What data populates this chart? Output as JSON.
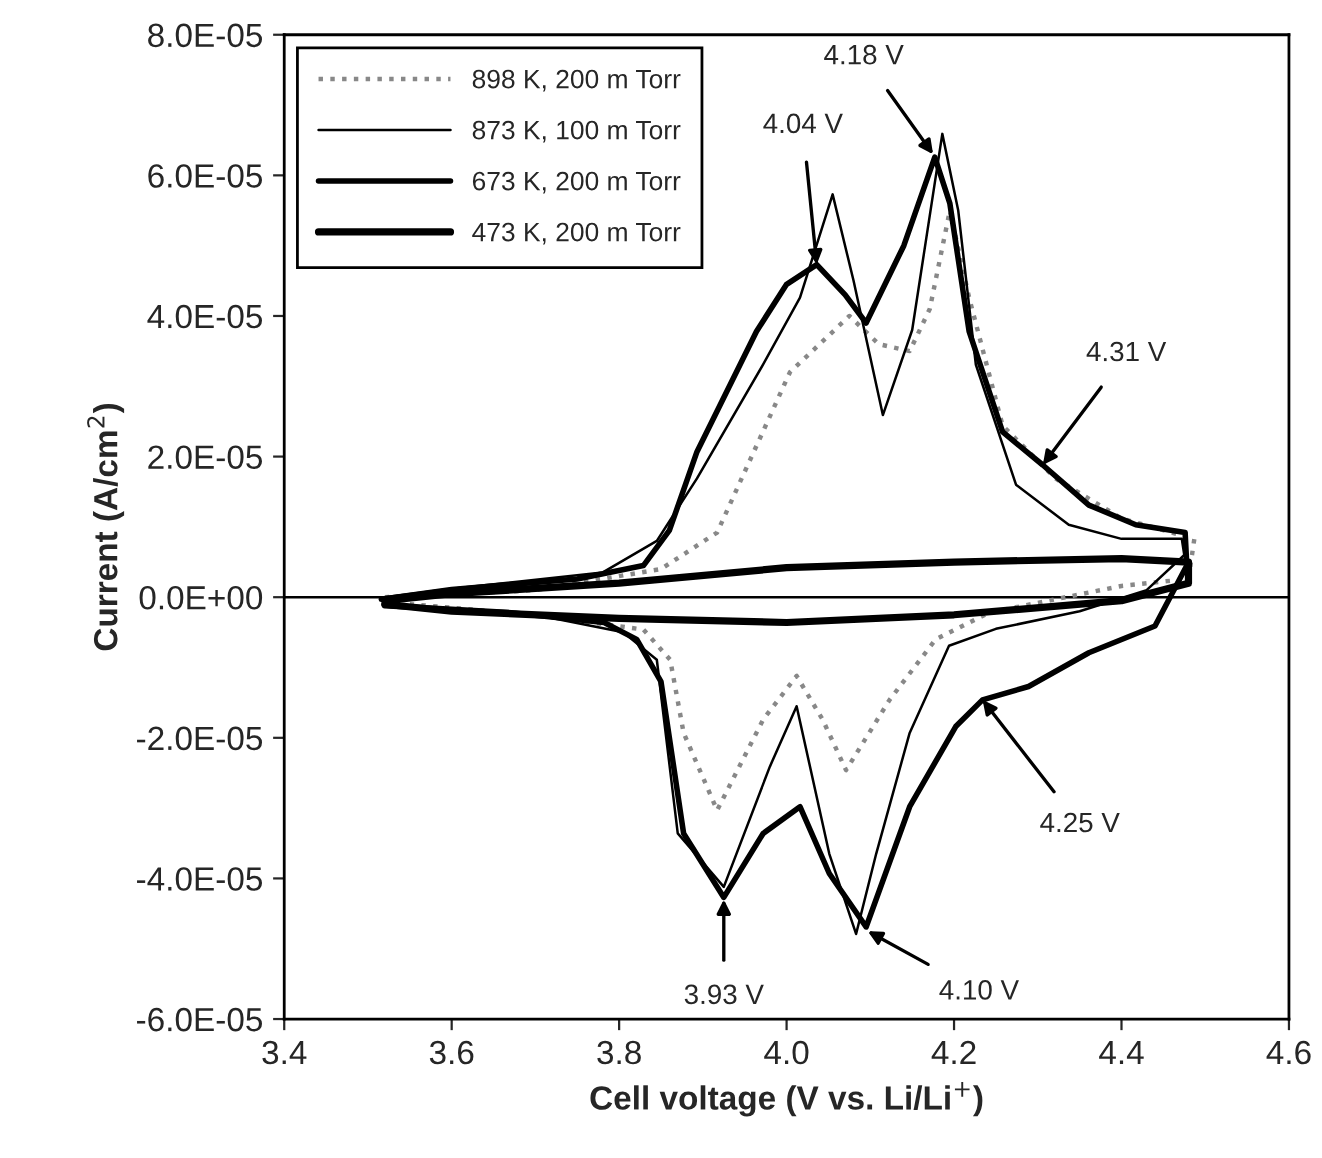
{
  "chart_data": {
    "type": "line",
    "xlabel": "Cell voltage (V vs. Li/Li$^{+}$)",
    "ylabel": "Current (A/cm$^{2}$)",
    "xlim": [
      3.4,
      4.6
    ],
    "xticks": [
      {
        "value": 3.4,
        "label": "3.4"
      },
      {
        "value": 3.6,
        "label": "3.6"
      },
      {
        "value": 3.8,
        "label": "3.8"
      },
      {
        "value": 4.0,
        "label": "4.0"
      },
      {
        "value": 4.2,
        "label": "4.2"
      },
      {
        "value": 4.4,
        "label": "4.4"
      },
      {
        "value": 4.6,
        "label": "4.6"
      }
    ],
    "ylim": [
      -6e-05,
      8e-05
    ],
    "yticks": [
      {
        "value": -6e-05,
        "label": "-6.0E-05"
      },
      {
        "value": -4e-05,
        "label": "-4.0E-05"
      },
      {
        "value": -2e-05,
        "label": "-2.0E-05"
      },
      {
        "value": 0,
        "label": "0.0E+00"
      },
      {
        "value": 2e-05,
        "label": "2.0E-05"
      },
      {
        "value": 4e-05,
        "label": "4.0E-05"
      },
      {
        "value": 6e-05,
        "label": "6.0E-05"
      },
      {
        "value": 8e-05,
        "label": "8.0E-05"
      }
    ],
    "grid": false,
    "legend": "top left",
    "marker": "none",
    "ref_lines": [
      {
        "axis": "y",
        "value": 0,
        "color": "#000000"
      }
    ],
    "series": [
      {
        "name": "898 K, 200 m Torr",
        "color": "#888888",
        "line_style": "dotted",
        "x": [
          3.52,
          3.7,
          3.85,
          3.917,
          4.004,
          4.075,
          4.11,
          4.147,
          4.171,
          4.195,
          4.218,
          4.258,
          4.321,
          4.4,
          4.487,
          4.48,
          4.4,
          4.242,
          4.178,
          4.123,
          4.071,
          4.043,
          4.012,
          3.972,
          3.917,
          3.877,
          3.861,
          3.829,
          3.7,
          3.55
        ],
        "values": [
          0,
          1e-06,
          4e-06,
          9.2e-06,
          3.2e-05,
          4e-05,
          3.6e-05,
          3.5e-05,
          4.1e-05,
          5.5e-05,
          4.26e-05,
          2.44e-05,
          1.69e-05,
          1.12e-05,
          8.3e-06,
          2.6e-06,
          1.6e-06,
          -2.2e-06,
          -6e-06,
          -1.46e-05,
          -2.46e-05,
          -1.74e-05,
          -1.12e-05,
          -1.74e-05,
          -3.03e-05,
          -1.93e-05,
          -8.9e-06,
          -4.6e-06,
          -2.5e-06,
          -1e-06
        ]
      },
      {
        "name": "873 K, 100 m Torr",
        "color": "#000000",
        "line_style": "solid",
        "x": [
          3.52,
          3.6,
          3.78,
          3.845,
          3.893,
          3.972,
          4.016,
          4.055,
          4.08,
          4.115,
          4.15,
          4.186,
          4.205,
          4.226,
          4.274,
          4.337,
          4.4,
          4.472,
          4.475,
          4.43,
          4.35,
          4.25,
          4.194,
          4.147,
          4.107,
          4.083,
          4.051,
          4.012,
          3.98,
          3.925,
          3.87,
          3.845,
          3.805,
          3.7,
          3.52
        ],
        "values": [
          0,
          1.2e-06,
          3.5e-06,
          8e-06,
          1.69e-05,
          3.31e-05,
          4.26e-05,
          5.73e-05,
          4.5e-05,
          2.59e-05,
          3.8e-05,
          6.59e-05,
          5.5e-05,
          3.31e-05,
          1.6e-05,
          1.03e-05,
          8.3e-06,
          8.3e-06,
          6e-06,
          1e-06,
          -2e-06,
          -4.5e-06,
          -6.9e-06,
          -1.93e-05,
          -3.65e-05,
          -4.79e-05,
          -3.65e-05,
          -1.55e-05,
          -2.41e-05,
          -4.12e-05,
          -3.36e-05,
          -8.9e-06,
          -5e-06,
          -2.5e-06,
          -1e-06
        ]
      },
      {
        "name": "673 K, 200 m Torr",
        "color": "#000000",
        "line_style": "solid",
        "x": [
          3.516,
          3.6,
          3.75,
          3.829,
          3.86,
          3.893,
          3.964,
          4.0,
          4.036,
          4.07,
          4.095,
          4.14,
          4.177,
          4.195,
          4.218,
          4.258,
          4.306,
          4.361,
          4.417,
          4.476,
          4.478,
          4.44,
          4.361,
          4.289,
          4.234,
          4.202,
          4.147,
          4.095,
          4.051,
          4.016,
          3.972,
          3.925,
          3.877,
          3.85,
          3.821,
          3.782,
          3.671,
          3.52
        ],
        "values": [
          -3e-07,
          1.1e-06,
          2.6e-06,
          4.5e-06,
          9.5e-06,
          2.07e-05,
          3.78e-05,
          4.45e-05,
          4.73e-05,
          4.3e-05,
          3.9e-05,
          5e-05,
          6.26e-05,
          5.6e-05,
          3.78e-05,
          2.35e-05,
          1.88e-05,
          1.31e-05,
          1.03e-05,
          9.2e-06,
          4.5e-06,
          -4.1e-06,
          -7.9e-06,
          -1.27e-05,
          -1.46e-05,
          -1.84e-05,
          -2.98e-05,
          -4.69e-05,
          -3.93e-05,
          -2.98e-05,
          -3.36e-05,
          -4.27e-05,
          -3.36e-05,
          -1.2e-05,
          -6e-06,
          -3.6e-06,
          -2.2e-06,
          -1.2e-06
        ]
      },
      {
        "name": "473 K, 200 m Torr",
        "color": "#000000",
        "line_style": "solid",
        "x": [
          3.52,
          3.6,
          3.8,
          4.0,
          4.2,
          4.4,
          4.48,
          4.48,
          4.4,
          4.2,
          4.0,
          3.8,
          3.6,
          3.52
        ],
        "values": [
          -5e-07,
          5e-07,
          2e-06,
          4.2e-06,
          5e-06,
          5.5e-06,
          5e-06,
          2e-06,
          -5e-07,
          -2.5e-06,
          -3.6e-06,
          -3e-06,
          -2e-06,
          -1e-06
        ]
      }
    ],
    "annotations": [
      {
        "text": "4.04 V",
        "x": 4.036,
        "y": 4.73e-05
      },
      {
        "text": "4.18 V",
        "x": 4.175,
        "y": 6.3e-05
      },
      {
        "text": "4.31 V",
        "x": 4.306,
        "y": 1.88e-05
      },
      {
        "text": "3.93 V",
        "x": 3.925,
        "y": -4.3e-05
      },
      {
        "text": "4.10 V",
        "x": 4.097,
        "y": -4.75e-05
      },
      {
        "text": "4.25 V",
        "x": 4.234,
        "y": -1.46e-05
      }
    ]
  }
}
